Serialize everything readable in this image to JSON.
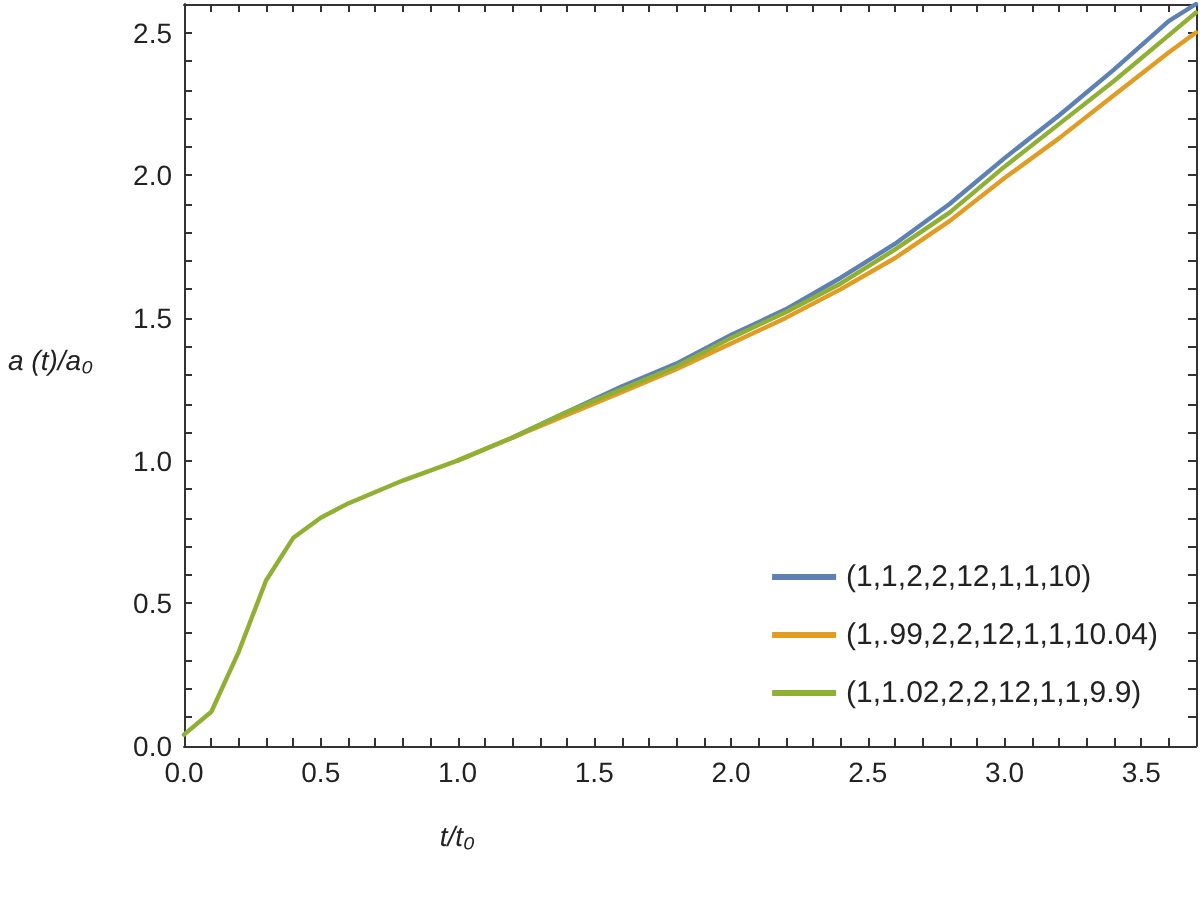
{
  "chart_data": {
    "type": "line",
    "xlabel": "t/t₀",
    "ylabel": "a (t)/a₀",
    "xlim": [
      0,
      3.7
    ],
    "ylim": [
      0,
      2.6
    ],
    "xticks": [
      {
        "value": 0,
        "label": "0.0"
      },
      0.5,
      {
        "value": 1,
        "label": "1.0"
      },
      1.5,
      {
        "value": 2,
        "label": "2.0"
      },
      2.5,
      {
        "value": 3,
        "label": "3.0"
      },
      3.5
    ],
    "yticks": [
      {
        "value": 0,
        "label": "0.0"
      },
      0.5,
      {
        "value": 1,
        "label": "1.0"
      },
      1.5,
      {
        "value": 2,
        "label": "2.0"
      },
      2.5
    ],
    "grid": false,
    "legend": "bottom right",
    "marker": "none",
    "line_style": "solid",
    "series": [
      {
        "name": "(1,1,2,2,12,1,1,10)",
        "color": "#5e81b5",
        "x": [
          1.2,
          1.4,
          1.6,
          1.8,
          2.0,
          2.2,
          2.4,
          2.6,
          2.8,
          3.0,
          3.2,
          3.4,
          3.6,
          3.7
        ],
        "values": [
          1.08,
          1.17,
          1.26,
          1.34,
          1.44,
          1.53,
          1.64,
          1.76,
          1.9,
          2.06,
          2.21,
          2.37,
          2.54,
          2.6
        ]
      },
      {
        "name": "(1,.99,2,2,12,1,1,10.04)",
        "color": "#e19c24",
        "x": [
          1.0,
          1.2,
          1.4,
          1.6,
          1.8,
          2.0,
          2.2,
          2.4,
          2.6,
          2.8,
          3.0,
          3.2,
          3.4,
          3.6,
          3.7
        ],
        "values": [
          1.0,
          1.08,
          1.16,
          1.24,
          1.32,
          1.41,
          1.5,
          1.6,
          1.71,
          1.84,
          1.99,
          2.13,
          2.28,
          2.43,
          2.5
        ]
      },
      {
        "name": "(1,1.02,2,2,12,1,1,9.9)",
        "color": "#8fb032",
        "x": [
          0,
          0.1,
          0.2,
          0.3,
          0.4,
          0.5,
          0.6,
          0.8,
          1.0,
          1.2,
          1.4,
          1.6,
          1.8,
          2.0,
          2.2,
          2.4,
          2.6,
          2.8,
          3.0,
          3.2,
          3.4,
          3.6,
          3.7
        ],
        "values": [
          0.04,
          0.12,
          0.33,
          0.58,
          0.73,
          0.8,
          0.85,
          0.93,
          1.0,
          1.08,
          1.17,
          1.25,
          1.33,
          1.43,
          1.52,
          1.62,
          1.74,
          1.87,
          2.03,
          2.18,
          2.33,
          2.49,
          2.57
        ]
      }
    ]
  }
}
